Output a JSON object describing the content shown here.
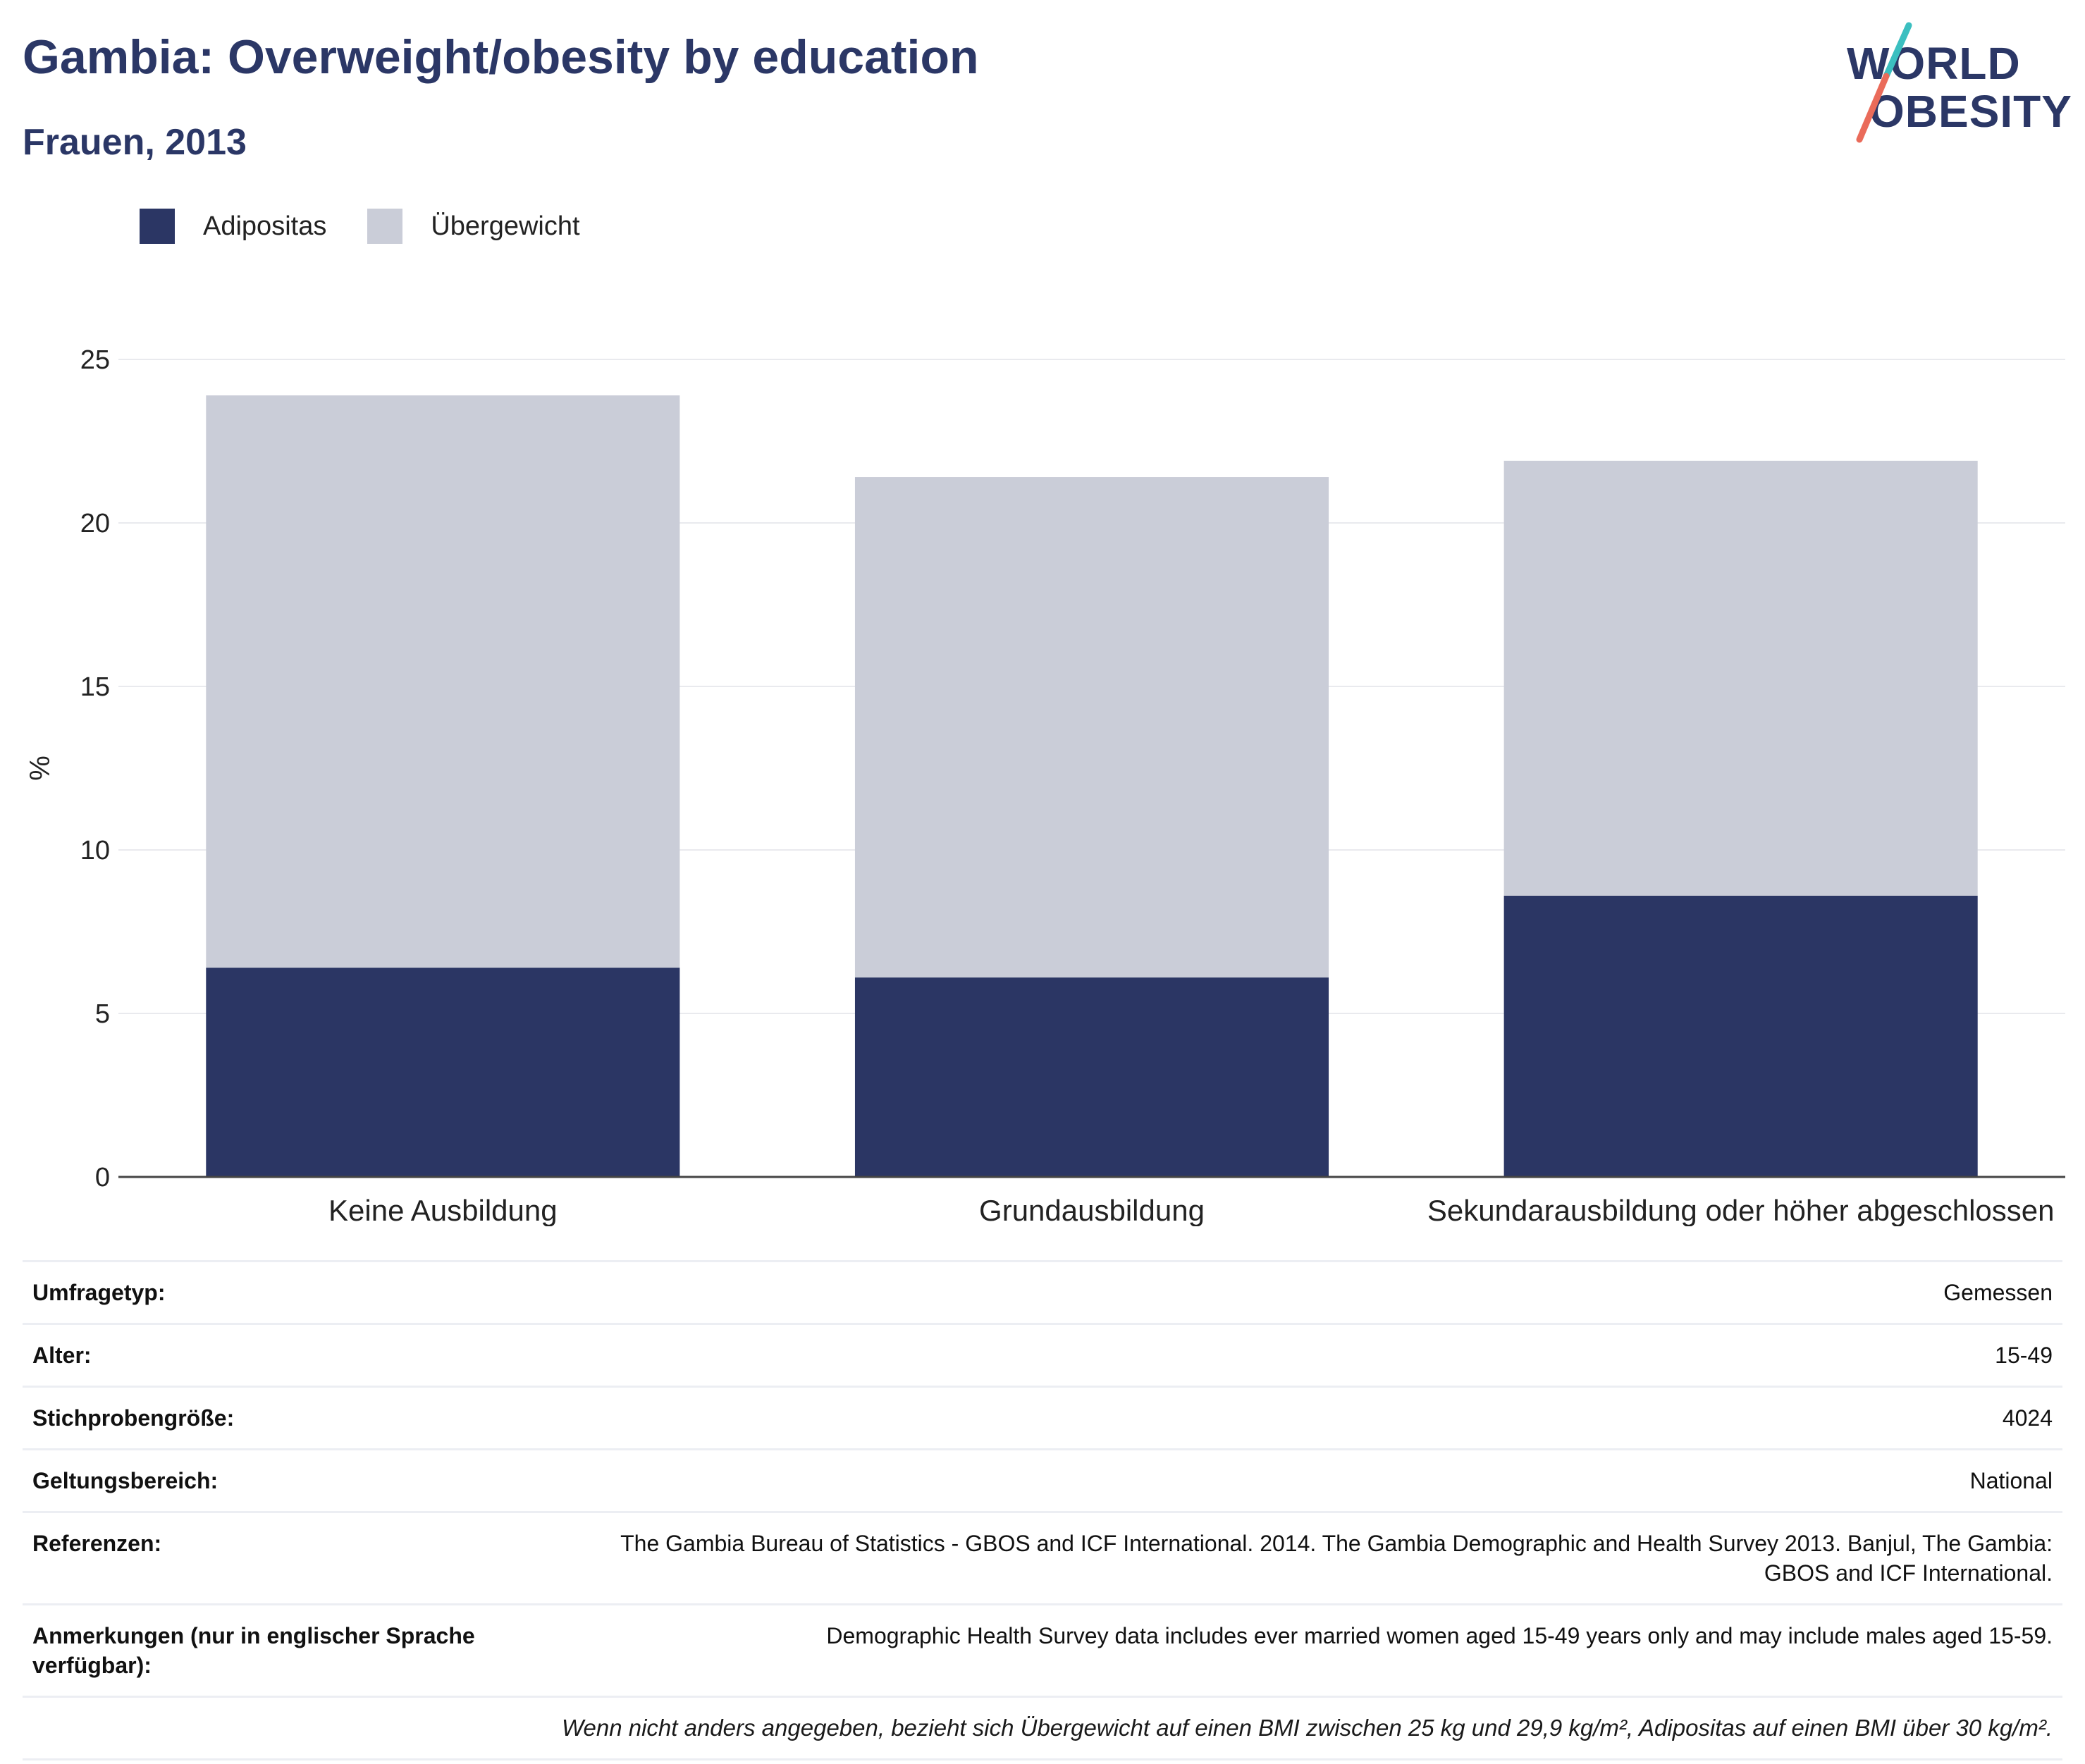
{
  "title": "Gambia: Overweight/obesity by education",
  "subtitle": "Frauen, 2013",
  "logo": {
    "line1": "WORLD",
    "line2": "OBESITY"
  },
  "colors": {
    "obesity": "#2b3664",
    "overweight": "#cacdd8",
    "brand_navy": "#2b3766",
    "brand_teal": "#3bbfc0",
    "brand_coral": "#ea6b5a"
  },
  "legend": [
    {
      "label": "Adipositas",
      "color": "#2b3664"
    },
    {
      "label": "Übergewicht",
      "color": "#cacdd8"
    }
  ],
  "chart_data": {
    "type": "bar",
    "stacked": true,
    "categories": [
      "Keine Ausbildung",
      "Grundausbildung",
      "Sekundarausbildung oder höher abgeschlossen"
    ],
    "series": [
      {
        "name": "Adipositas",
        "values": [
          6.4,
          6.1,
          8.6
        ]
      },
      {
        "name": "Übergewicht",
        "values": [
          17.5,
          15.3,
          13.3
        ]
      }
    ],
    "ylabel": "%",
    "ylim": [
      0,
      25
    ],
    "yticks": [
      0,
      5,
      10,
      15,
      20,
      25
    ],
    "grid": true
  },
  "meta": [
    {
      "key": "Umfragetyp:",
      "value": "Gemessen"
    },
    {
      "key": "Alter:",
      "value": "15-49"
    },
    {
      "key": "Stichprobengröße:",
      "value": "4024"
    },
    {
      "key": "Geltungsbereich:",
      "value": "National"
    },
    {
      "key": "Referenzen:",
      "value": "The Gambia Bureau of Statistics - GBOS and ICF International. 2014. The Gambia Demographic and Health Survey 2013. Banjul, The Gambia: GBOS and ICF International."
    },
    {
      "key": "Anmerkungen (nur in englischer Sprache verfügbar):",
      "value": "Demographic Health Survey data includes ever married women aged 15-49 years only and may include males aged 15-59."
    }
  ],
  "footnote": "Wenn nicht anders angegeben, bezieht sich Übergewicht auf einen BMI zwischen 25 kg und 29,9 kg/m², Adipositas auf einen BMI über 30 kg/m²."
}
